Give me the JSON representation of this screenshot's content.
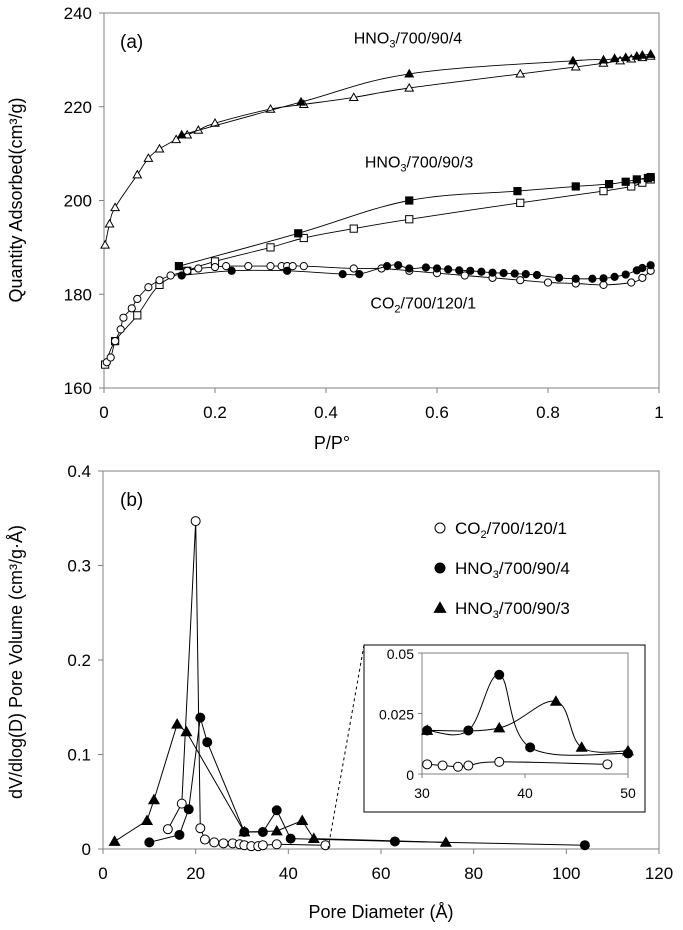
{
  "chart_data": [
    {
      "id": "a",
      "type": "line",
      "panel_label": "(a)",
      "xlabel": "P/P°",
      "ylabel": "Quantity Adsorbed(cm³/g)",
      "xlim": [
        0,
        1
      ],
      "ylim": [
        160,
        240
      ],
      "xticks": [
        0,
        0.2,
        0.4,
        0.6,
        0.8,
        1
      ],
      "xtick_labels": [
        "0",
        "0.2",
        "0.4",
        "0.6",
        "0.8",
        "1"
      ],
      "yticks": [
        160,
        180,
        200,
        220,
        240
      ],
      "ytick_labels": [
        "160",
        "180",
        "200",
        "220",
        "240"
      ],
      "annotations": [
        {
          "main": "HNO",
          "sub": "3",
          "rest": "/700/90/4",
          "x": 0.45,
          "y": 233.5
        },
        {
          "main": "HNO",
          "sub": "3",
          "rest": "/700/90/3",
          "x": 0.47,
          "y": 207
        },
        {
          "main": "CO",
          "sub": "2",
          "rest": "/700/120/1",
          "x": 0.48,
          "y": 177
        }
      ],
      "series": [
        {
          "name": "HNO3/700/90/4 adsorption",
          "marker": "triangle-open",
          "x": [
            0.002,
            0.01,
            0.02,
            0.06,
            0.08,
            0.1,
            0.13,
            0.15,
            0.17,
            0.2,
            0.3,
            0.36,
            0.45,
            0.55,
            0.75,
            0.85,
            0.9,
            0.93,
            0.95,
            0.97,
            0.985
          ],
          "y": [
            190.5,
            195,
            198.5,
            205.5,
            209,
            211,
            213,
            214,
            215,
            216.5,
            219.5,
            220.5,
            222,
            224,
            227,
            228.5,
            229.3,
            229.8,
            230.2,
            230.5,
            230.8
          ]
        },
        {
          "name": "HNO3/700/90/4 desorption",
          "marker": "triangle-filled",
          "x": [
            0.14,
            0.355,
            0.55,
            0.845,
            0.9,
            0.92,
            0.94,
            0.96,
            0.97,
            0.985
          ],
          "y": [
            214,
            221,
            227,
            229.8,
            230,
            230.3,
            230.5,
            230.8,
            231,
            231.2
          ]
        },
        {
          "name": "HNO3/700/90/3 adsorption",
          "marker": "square-open",
          "x": [
            0.002,
            0.02,
            0.06,
            0.1,
            0.15,
            0.2,
            0.3,
            0.36,
            0.45,
            0.55,
            0.75,
            0.9,
            0.95,
            0.97,
            0.985
          ],
          "y": [
            165,
            170,
            175.5,
            182,
            185,
            187,
            190,
            192,
            194,
            196,
            199.5,
            202,
            203,
            203.8,
            204.5
          ]
        },
        {
          "name": "HNO3/700/90/3 desorption",
          "marker": "square-filled",
          "x": [
            0.135,
            0.35,
            0.55,
            0.745,
            0.85,
            0.91,
            0.94,
            0.96,
            0.98,
            0.985
          ],
          "y": [
            186,
            193,
            200,
            202,
            203,
            203.5,
            204,
            204.5,
            204.8,
            205
          ]
        },
        {
          "name": "CO2/700/120/1 adsorption",
          "marker": "circle-open",
          "x": [
            0.005,
            0.012,
            0.02,
            0.03,
            0.035,
            0.05,
            0.06,
            0.08,
            0.1,
            0.12,
            0.15,
            0.17,
            0.2,
            0.22,
            0.26,
            0.3,
            0.32,
            0.33,
            0.34,
            0.36,
            0.45,
            0.5,
            0.55,
            0.6,
            0.65,
            0.7,
            0.75,
            0.8,
            0.85,
            0.9,
            0.95,
            0.97,
            0.985
          ],
          "y": [
            165.5,
            166.5,
            170,
            172.5,
            175,
            177,
            179,
            181.5,
            183,
            184,
            185,
            185.5,
            185.8,
            186,
            186,
            186,
            186,
            186,
            186,
            186,
            185.5,
            185.5,
            185,
            184.5,
            184,
            183.5,
            183,
            182.5,
            182.3,
            182,
            182.5,
            183.5,
            185
          ]
        },
        {
          "name": "CO2/700/120/1 desorption",
          "marker": "circle-filled",
          "x": [
            0.14,
            0.23,
            0.33,
            0.43,
            0.46,
            0.51,
            0.53,
            0.55,
            0.58,
            0.6,
            0.62,
            0.64,
            0.66,
            0.68,
            0.7,
            0.72,
            0.74,
            0.76,
            0.78,
            0.82,
            0.85,
            0.88,
            0.9,
            0.92,
            0.94,
            0.96,
            0.97,
            0.985
          ],
          "y": [
            184,
            185,
            185,
            184.3,
            184.3,
            186,
            186.2,
            185.5,
            185.7,
            185.5,
            185.3,
            185.1,
            185,
            184.8,
            184.6,
            184.5,
            184.4,
            184.3,
            184.1,
            183.5,
            183.3,
            183.3,
            183.4,
            183.7,
            184.2,
            185.1,
            185.6,
            186.2
          ]
        }
      ]
    },
    {
      "id": "b",
      "type": "line",
      "panel_label": "(b)",
      "xlabel": "Pore Diameter (Å)",
      "ylabel": "dV/dlog(D) Pore Volume (cm³/g·Å)",
      "xlim": [
        0,
        120
      ],
      "ylim": [
        0,
        0.4
      ],
      "xticks": [
        0,
        20,
        40,
        60,
        80,
        100,
        120
      ],
      "xtick_labels": [
        "0",
        "20",
        "40",
        "60",
        "80",
        "100",
        "120"
      ],
      "yticks": [
        0,
        0.1,
        0.2,
        0.3,
        0.4
      ],
      "ytick_labels": [
        "0",
        "0.1",
        "0.2",
        "0.3",
        "0.4"
      ],
      "legend": {
        "position": "right",
        "entries": [
          {
            "marker": "circle-open",
            "main": "CO",
            "sub": "2",
            "rest": "/700/120/1"
          },
          {
            "marker": "circle-filled",
            "main": "HNO",
            "sub": "3",
            "rest": "/700/90/4"
          },
          {
            "marker": "triangle-filled",
            "main": "HNO",
            "sub": "3",
            "rest": "/700/90/3"
          }
        ]
      },
      "series": [
        {
          "name": "CO2/700/120/1",
          "marker": "circle-open",
          "x": [
            14,
            17,
            20,
            21,
            22,
            24,
            26,
            28,
            29.5,
            30.5,
            32,
            33.5,
            34.5,
            37.5,
            48
          ],
          "y": [
            0.021,
            0.048,
            0.347,
            0.022,
            0.01,
            0.007,
            0.006,
            0.006,
            0.005,
            0.004,
            0.003,
            0.003,
            0.004,
            0.005,
            0.004
          ]
        },
        {
          "name": "HNO3/700/90/4",
          "marker": "circle-filled",
          "x": [
            10,
            16.5,
            18.5,
            21,
            22.5,
            30.5,
            34.5,
            37.5,
            40.5,
            63,
            104
          ],
          "y": [
            0.007,
            0.015,
            0.042,
            0.139,
            0.113,
            0.018,
            0.018,
            0.041,
            0.011,
            0.008,
            0.004
          ]
        },
        {
          "name": "HNO3/700/90/3",
          "marker": "triangle-filled",
          "x": [
            2.5,
            9.5,
            11,
            16,
            18,
            30.5,
            37.5,
            43,
            45.5,
            74
          ],
          "y": [
            0.008,
            0.03,
            0.052,
            0.132,
            0.124,
            0.018,
            0.019,
            0.03,
            0.011,
            0.007
          ]
        }
      ],
      "inset": {
        "xlim": [
          30,
          50
        ],
        "ylim": [
          0,
          0.05
        ],
        "xticks": [
          30,
          40,
          50
        ],
        "xtick_labels": [
          "30",
          "40",
          "50"
        ],
        "yticks": [
          0,
          0.025,
          0.05
        ],
        "ytick_labels": [
          "0",
          "0.025",
          "0.05"
        ],
        "series": [
          {
            "name": "CO2/700/120/1",
            "marker": "circle-open",
            "x": [
              30.5,
              32,
              33.5,
              34.5,
              37.5,
              48
            ],
            "y": [
              0.004,
              0.0035,
              0.003,
              0.0035,
              0.005,
              0.004
            ]
          },
          {
            "name": "HNO3/700/90/4",
            "marker": "circle-filled",
            "x": [
              30.5,
              34.5,
              37.5,
              40.5,
              50
            ],
            "y": [
              0.018,
              0.018,
              0.041,
              0.011,
              0.0085
            ]
          },
          {
            "name": "HNO3/700/90/3",
            "marker": "triangle-filled",
            "x": [
              30.5,
              37.5,
              43,
              45.5,
              50
            ],
            "y": [
              0.018,
              0.019,
              0.03,
              0.011,
              0.0095
            ]
          }
        ]
      }
    }
  ]
}
